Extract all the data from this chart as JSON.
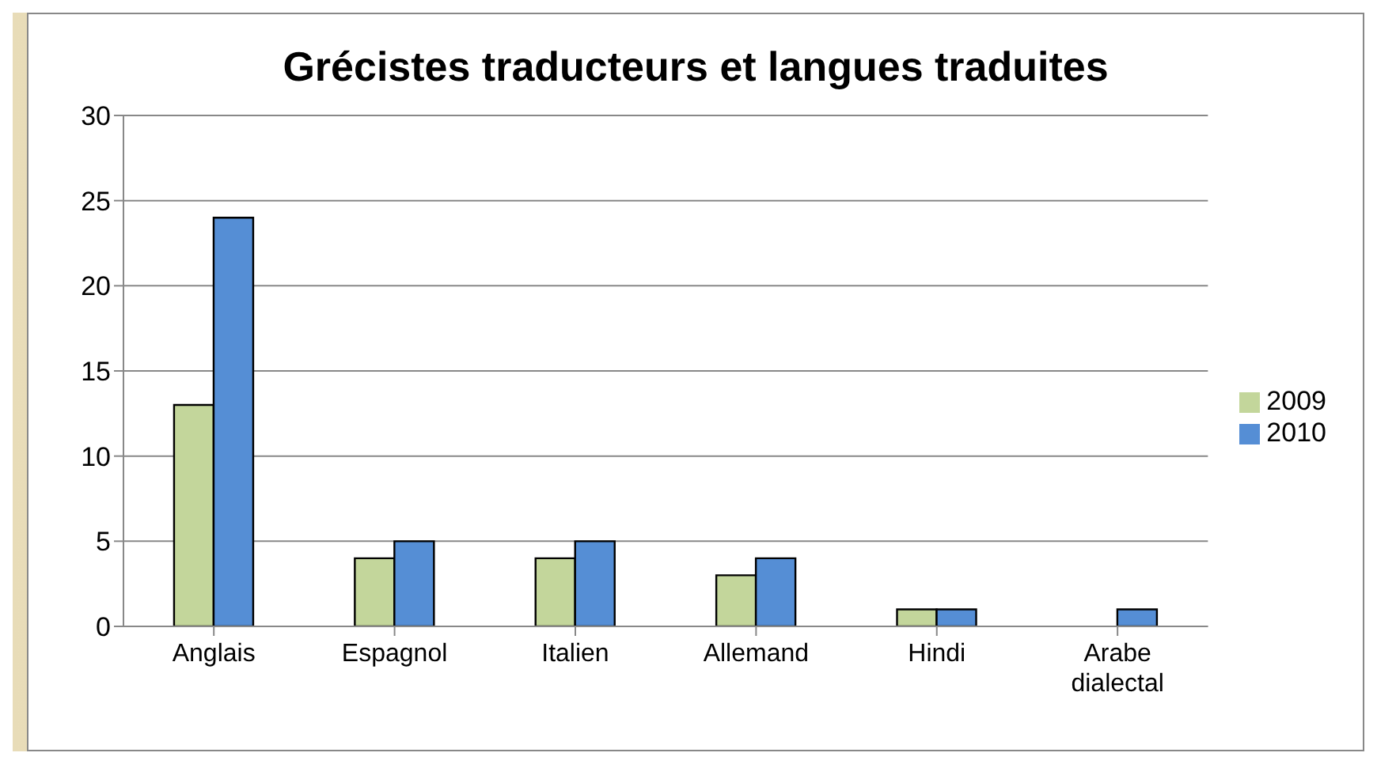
{
  "chart_data": {
    "type": "bar",
    "title": "Grécistes traducteurs et langues traduites",
    "categories": [
      "Anglais",
      "Espagnol",
      "Italien",
      "Allemand",
      "Hindi",
      "Arabe dialectal"
    ],
    "series": [
      {
        "name": "2009",
        "color": "#c3d69b",
        "values": [
          13,
          4,
          4,
          3,
          1,
          0
        ]
      },
      {
        "name": "2010",
        "color": "#558ed5",
        "values": [
          24,
          5,
          5,
          4,
          1,
          1
        ]
      }
    ],
    "ylim": [
      0,
      30
    ],
    "yticks": [
      0,
      5,
      10,
      15,
      20,
      25,
      30
    ],
    "grid": "y",
    "legend": "right"
  }
}
